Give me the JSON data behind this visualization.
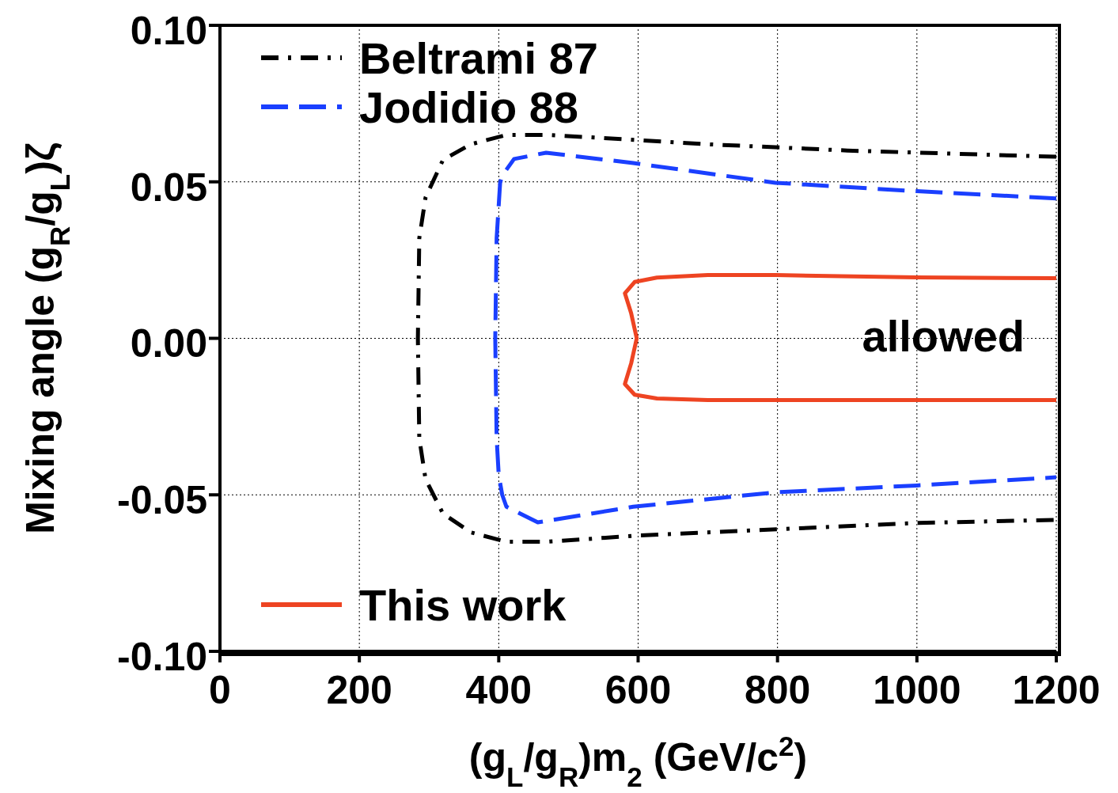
{
  "chart_data": {
    "type": "line",
    "xlabel": "(g$_{L}$/g$_{R}$)m$_{2}$ (GeV/c$^{2}$)",
    "ylabel": "Mixing angle (g$_{R}$/g$_{L}$)ζ",
    "xlim": [
      0,
      1200
    ],
    "xticks": [
      0,
      200,
      400,
      600,
      800,
      1000,
      1200
    ],
    "ylim": [
      -0.1,
      0.1
    ],
    "yticks": [
      {
        "value": -0.1,
        "label": "-0.10"
      },
      {
        "value": -0.05,
        "label": "-0.05"
      },
      {
        "value": 0,
        "label": "0.00"
      },
      {
        "value": 0.05,
        "label": "0.05"
      },
      {
        "value": 0.1,
        "label": "0.10"
      }
    ],
    "grid": true,
    "legend": "left",
    "marker": "none",
    "annotations": [
      "allowed"
    ],
    "series": [
      {
        "name": "Beltrami 87",
        "color": "#000000",
        "line_style": "dashdot",
        "x": [
          1200,
          900,
          700,
          550,
          468,
          411,
          360,
          320,
          295,
          286,
          284,
          286,
          295,
          320,
          360,
          411,
          468,
          600,
          800,
          1000,
          1200
        ],
        "values": [
          0.058,
          0.06,
          0.062,
          0.064,
          0.065,
          0.065,
          0.062,
          0.057,
          0.045,
          0.032,
          0,
          -0.032,
          -0.045,
          -0.056,
          -0.062,
          -0.065,
          -0.065,
          -0.063,
          -0.061,
          -0.059,
          -0.058
        ]
      },
      {
        "name": "Jodidio 88",
        "color": "#1a3fff",
        "line_style": "dashed",
        "x": [
          1200,
          1000,
          797,
          593,
          468,
          422,
          405,
          402,
          397,
          395,
          397,
          400,
          405,
          411,
          456,
          593,
          797,
          1000,
          1200
        ],
        "values": [
          0.0447,
          0.047,
          0.0497,
          0.056,
          0.0593,
          0.0573,
          0.052,
          0.0497,
          0.032,
          0,
          -0.032,
          -0.0437,
          -0.05,
          -0.0538,
          -0.0588,
          -0.0538,
          -0.0492,
          -0.047,
          -0.0444
        ]
      },
      {
        "name": "This work",
        "color": "#ee4422",
        "line_style": "solid",
        "x": [
          1200,
          1000,
          797,
          700,
          627,
          595,
          581,
          590,
          598,
          590,
          581,
          595,
          627,
          700,
          797,
          1000,
          1200
        ],
        "values": [
          0.0192,
          0.0195,
          0.0202,
          0.0202,
          0.0194,
          0.018,
          0.0144,
          0.008,
          0,
          -0.008,
          -0.0146,
          -0.018,
          -0.0192,
          -0.0197,
          -0.0197,
          -0.0197,
          -0.0197
        ]
      }
    ]
  }
}
